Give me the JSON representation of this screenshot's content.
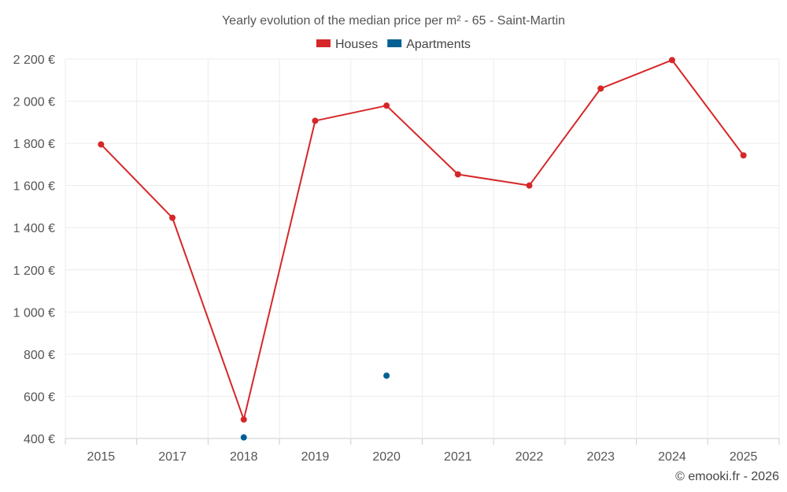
{
  "chart_data": {
    "type": "line",
    "title": "Yearly evolution of the median price per m² - 65 - Saint-Martin",
    "categories": [
      "2015",
      "2017",
      "2018",
      "2019",
      "2020",
      "2021",
      "2022",
      "2023",
      "2024",
      "2025"
    ],
    "yticks": [
      "400 €",
      "600 €",
      "800 €",
      "1 000 €",
      "1 200 €",
      "1 400 €",
      "1 600 €",
      "1 800 €",
      "2 000 €",
      "2 200 €"
    ],
    "ylim": [
      400,
      2200
    ],
    "xlabel": "",
    "ylabel": "",
    "legend_position": "top-center",
    "grid": true,
    "series": [
      {
        "name": "Houses",
        "color": "#d62728",
        "values": [
          1795,
          1447,
          490,
          1907,
          1979,
          1653,
          1600,
          2060,
          2195,
          1743
        ]
      },
      {
        "name": "Apartments",
        "color": "#005f94",
        "values": [
          null,
          null,
          405,
          null,
          698,
          null,
          null,
          null,
          null,
          null
        ]
      }
    ]
  },
  "credit": "© emooki.fr - 2026"
}
